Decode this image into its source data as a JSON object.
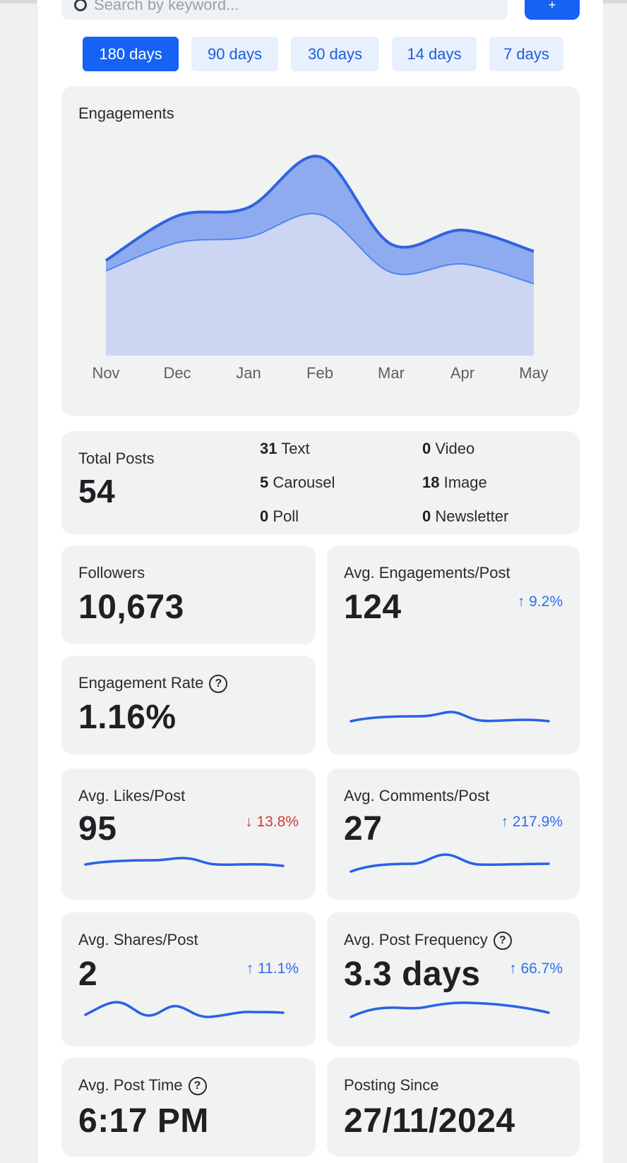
{
  "search": {
    "placeholder": "Search by keyword..."
  },
  "filter_button": {
    "label": "+"
  },
  "range_tabs": [
    {
      "label": "180 days",
      "active": true
    },
    {
      "label": "90 days",
      "active": false
    },
    {
      "label": "30 days",
      "active": false
    },
    {
      "label": "14 days",
      "active": false
    },
    {
      "label": "7 days",
      "active": false
    }
  ],
  "engagements": {
    "title": "Engagements"
  },
  "chart_data": {
    "type": "area",
    "title": "Engagements",
    "categories": [
      "Nov",
      "Dec",
      "Jan",
      "Feb",
      "Mar",
      "Apr",
      "May"
    ],
    "series": [
      {
        "name": "lower",
        "values": [
          120,
          160,
          168,
          200,
          118,
          130,
          102
        ],
        "color": "#ccd6f3"
      },
      {
        "name": "upper",
        "values": [
          135,
          198,
          210,
          282,
          158,
          178,
          148
        ],
        "color": "#8fabf0"
      }
    ],
    "ylim": [
      0,
      300
    ],
    "grid": false,
    "legend": "none"
  },
  "total_posts": {
    "label": "Total Posts",
    "value": "54",
    "breakdown": [
      {
        "count": "31",
        "type": "Text"
      },
      {
        "count": "0",
        "type": "Video"
      },
      {
        "count": "5",
        "type": "Carousel"
      },
      {
        "count": "18",
        "type": "Image"
      },
      {
        "count": "0",
        "type": "Poll"
      },
      {
        "count": "0",
        "type": "Newsletter"
      }
    ]
  },
  "followers": {
    "label": "Followers",
    "value": "10,673"
  },
  "engagement_rate": {
    "label": "Engagement Rate",
    "value": "1.16%",
    "help": "?"
  },
  "avg_engagements": {
    "label": "Avg. Engagements/Post",
    "value": "124",
    "change": "↑ 9.2%"
  },
  "avg_likes": {
    "label": "Avg. Likes/Post",
    "value": "95",
    "change": "↓ 13.8%"
  },
  "avg_comments": {
    "label": "Avg. Comments/Post",
    "value": "27",
    "change": "↑ 217.9%"
  },
  "avg_shares": {
    "label": "Avg. Shares/Post",
    "value": "2",
    "change": "↑ 11.1%"
  },
  "avg_frequency": {
    "label": "Avg. Post Frequency",
    "value": "3.3 days",
    "change": "↑ 66.7%",
    "help": "?"
  },
  "avg_post_time": {
    "label": "Avg. Post Time",
    "value": "6:17 PM",
    "help": "?"
  },
  "posting_since": {
    "label": "Posting Since",
    "value": "27/11/2024"
  },
  "colors": {
    "accent": "#1662f2",
    "up": "#2f6ee8",
    "down": "#d3373a",
    "spark": "#2962e3"
  }
}
